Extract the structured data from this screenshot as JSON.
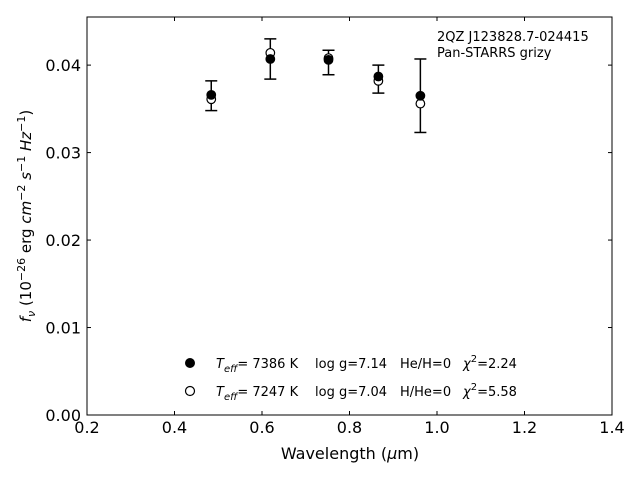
{
  "chart_data": {
    "type": "scatter",
    "annotation": [
      "2QZ J123828.7-024415",
      "Pan-STARRS grizy"
    ],
    "xlabel": "Wavelength (μm)",
    "ylabel": "fν (10⁻²⁶ erg cm⁻² s⁻¹ Hz⁻¹)",
    "xlim": [
      0.2,
      1.4
    ],
    "ylim": [
      0.0,
      0.0455
    ],
    "xticks": [
      "0.2",
      "0.4",
      "0.6",
      "0.8",
      "1.0",
      "1.2",
      "1.4"
    ],
    "yticks": [
      "0.00",
      "0.01",
      "0.02",
      "0.03",
      "0.04"
    ],
    "grid": false,
    "legend_position": "bottom-center",
    "observed": {
      "x": [
        0.484,
        0.619,
        0.752,
        0.866,
        0.962
      ],
      "y": [
        0.0365,
        0.0407,
        0.0403,
        0.0384,
        0.0365
      ],
      "yerr": [
        0.0017,
        0.0023,
        0.0014,
        0.0016,
        0.0042
      ]
    },
    "series": [
      {
        "marker": "filled-circle",
        "legend_text": {
          "teff_label": "T",
          "teff_sub": "eff",
          "teff_value": "=  7386 K",
          "logg": "log g=7.14",
          "comp": "He/H=0",
          "chi_symbol": "χ",
          "chi_sup": "2",
          "chi_value": "=2.24"
        },
        "x": [
          0.484,
          0.619,
          0.752,
          0.866,
          0.962
        ],
        "y": [
          0.0366,
          0.0407,
          0.0406,
          0.0387,
          0.0365
        ]
      },
      {
        "marker": "open-circle",
        "legend_text": {
          "teff_label": "T",
          "teff_sub": "eff",
          "teff_value": "=  7247 K",
          "logg": "log g=7.04",
          "comp": "H/He=0",
          "chi_symbol": "χ",
          "chi_sup": "2",
          "chi_value": "=5.58"
        },
        "x": [
          0.484,
          0.619,
          0.752,
          0.866,
          0.962
        ],
        "y": [
          0.0361,
          0.0414,
          0.0408,
          0.0382,
          0.0356
        ]
      }
    ],
    "colors": {
      "marker": "#000000",
      "axes": "#000000",
      "background": "#ffffff"
    }
  }
}
